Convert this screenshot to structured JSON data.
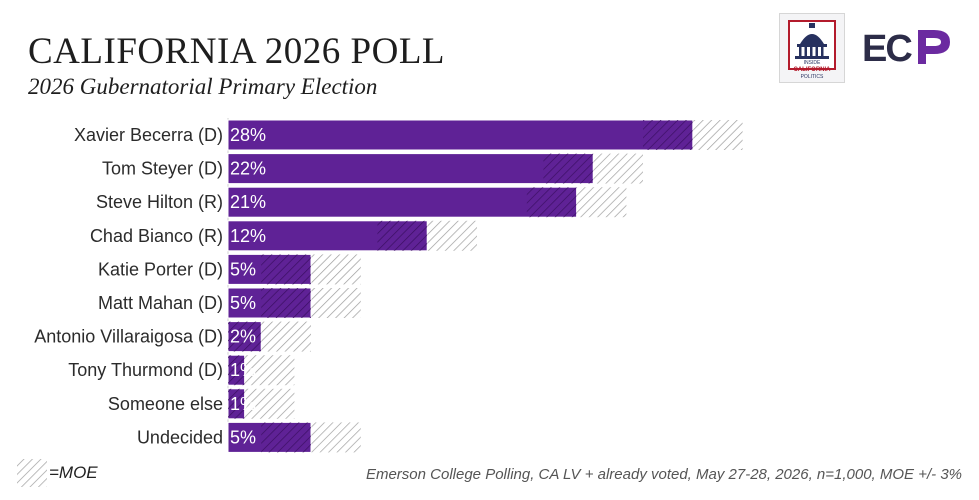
{
  "header": {
    "title": "CALIFORNIA 2026 POLL",
    "subtitle": "2026 Gubernatorial Primary Election"
  },
  "logos": {
    "icp_text": "INSIDE CALIFORNIA POLITICS",
    "ecp_text": "ECP"
  },
  "legend": {
    "moe_label": "=MOE"
  },
  "footer": {
    "source": "Emerson College Polling, CA LV + already voted, May 27-28, 2026, n=1,000, MOE +/- 3%"
  },
  "colors": {
    "bar": "#5f2296",
    "bar_border": "#ffffff",
    "moe_hatch": "#9d9d9d",
    "text": "#2b2b2b",
    "value_label": "#ffffff"
  },
  "chart_data": {
    "type": "bar",
    "orientation": "horizontal",
    "categories": [
      "Xavier Becerra (D)",
      "Tom Steyer (D)",
      "Steve Hilton (R)",
      "Chad Bianco (R)",
      "Katie Porter (D)",
      "Matt Mahan (D)",
      "Antonio Villaraigosa (D)",
      "Tony Thurmond (D)",
      "Someone else",
      "Undecided"
    ],
    "values": [
      28,
      22,
      21,
      12,
      5,
      5,
      2,
      1,
      1,
      5
    ],
    "value_labels": [
      "28%",
      "22%",
      "21%",
      "12%",
      "5%",
      "5%",
      "2%",
      "1%",
      "1%",
      "5%"
    ],
    "moe": 3,
    "xlim": [
      0,
      40
    ],
    "grid": false,
    "legend_position": "bottom-left"
  }
}
